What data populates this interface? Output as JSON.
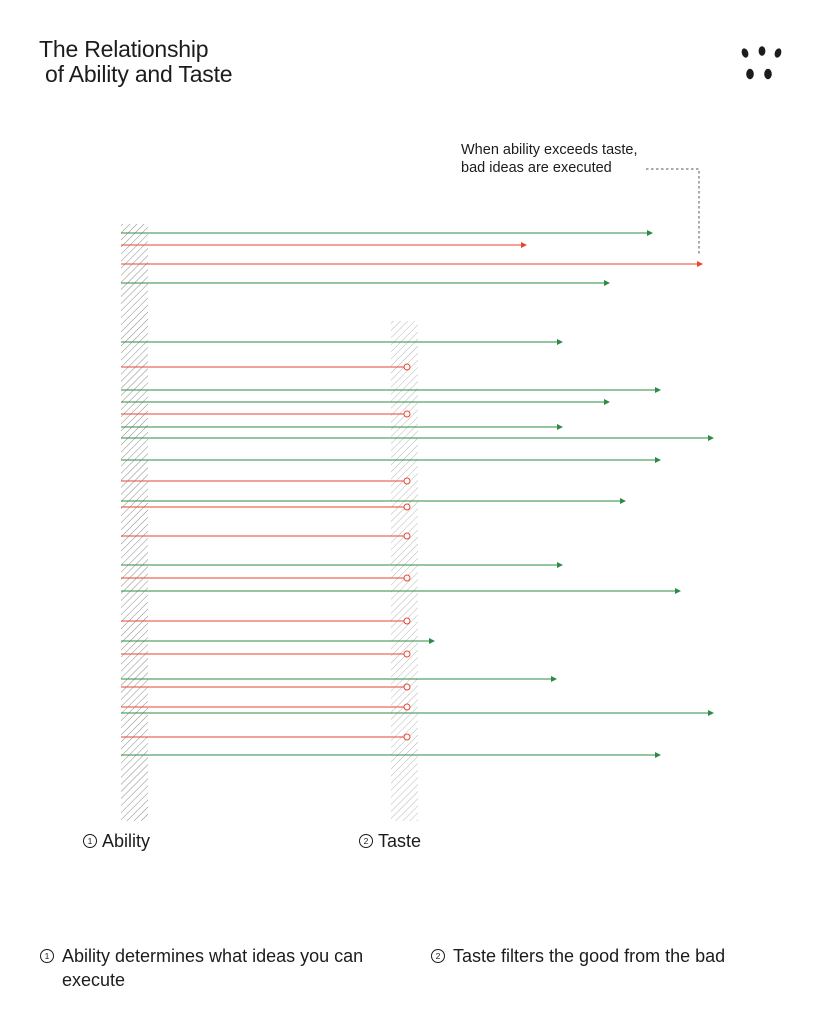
{
  "title": {
    "line1": "The Relationship",
    "line2": "of Ability and Taste"
  },
  "logo": {
    "icon": "four-dots-logo-icon"
  },
  "annotation": {
    "line1": "When ability exceeds taste,",
    "line2": "bad ideas are executed"
  },
  "labels": {
    "ability": {
      "number": "1",
      "text": "Ability"
    },
    "taste": {
      "number": "2",
      "text": "Taste"
    }
  },
  "footnotes": [
    {
      "number": "1",
      "text": "Ability determines what ideas you can execute"
    },
    {
      "number": "2",
      "text": "Taste filters the good from the bad"
    }
  ],
  "colors": {
    "good": "#2e8b46",
    "bad": "#e8452f",
    "text": "#1c1c1c",
    "hatch": "#8a8a8a"
  }
}
